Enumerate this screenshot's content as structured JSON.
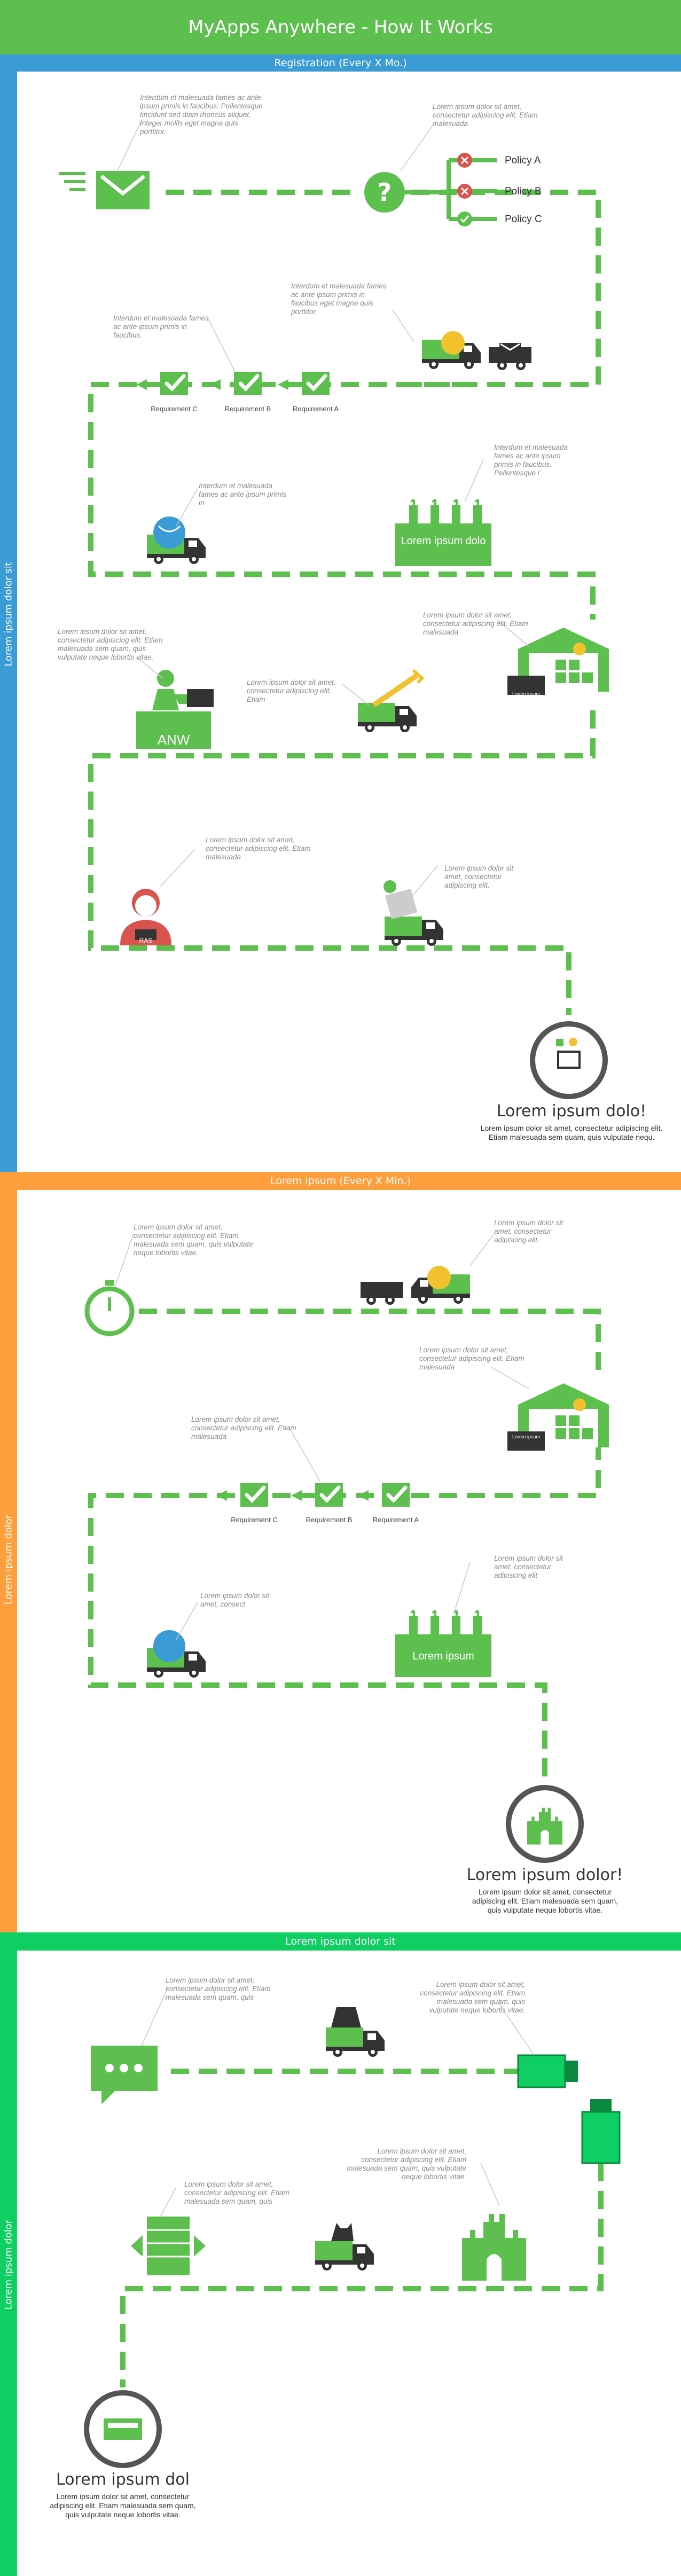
{
  "title": "MyApps Anywhere - How It Works",
  "colors": {
    "green": "#5cbf4e",
    "blue": "#3a9bd5",
    "orange": "#ff9e3d",
    "bright_green": "#0fcf63",
    "dark": "#333333",
    "red": "#d9534f"
  },
  "sections": [
    {
      "header": "Registration (Every X Mo.)",
      "side_label": "Lorem ipsum dolor sit"
    },
    {
      "header": "Lorem ipsum (Every X Min.)",
      "side_label": "Lorem ipsum dolor"
    },
    {
      "header": "Lorem ipsum dolor sit",
      "side_label": "Lorem ipsum dolor"
    }
  ],
  "s1": {
    "notes": [
      "Interdum et malesuada fames ac ante ipsum primis in faucibus. Pellentesque tincidunt sed diam rhoncus aliquet. Integer mollis eget magna quis porttitor.",
      "Lorem ipsum dolor sit amet, consectetur adipiscing elit. Etiam malesuada",
      "Interdum et malesuada fames ac ante ipsum primis in faucibus eget magna quis porttitor.",
      "Interdum et malesuada fames ac ante ipsum primis in faucibus.",
      "Interdum et malesuada fames ac ante ipsum primis in",
      "Interdum et malesuada fames ac ante ipsum primis in faucibus. Pellentesque l",
      "Lorem ipsum dolor sit amet, consectetur adipiscing elit. Etiam malesuada",
      "Lorem ipsum dolor sit amet, consectetur adipiscing elit. Etiam malesuada sem quam, quis vulputate neque lobortis vitae.",
      "Lorem ipsum dolor sit amet, consectetur adipiscing elit. Etiam",
      "Lorem ipsum dolor sit amet, consectetur adipiscing elit. Etiam malesuada",
      "Lorem ipsum dolor sit amet, consectetur adipiscing elit."
    ],
    "policies": [
      "Policy A",
      "Policy B",
      "Policy C"
    ],
    "requirements": [
      "Requirement C",
      "Requirement B",
      "Requirement A"
    ],
    "factory_label": "Lorem ipsum dolo",
    "desk_label": "ANW",
    "badge_label": "RAS",
    "sign_label": "Lorem ipsum",
    "final_title": "Lorem ipsum dolo!",
    "final_body": "Lorem ipsum dolor sit amet, consectetur adipiscing elit. Etiam malesuada sem quam, quis vulputate nequ."
  },
  "s2": {
    "notes": [
      "Lorem ipsum dolor sit amet, consectetur adipiscing elit. Etiam malesuada sem quam, quis vulputate neque lobortis vitae.",
      "Lorem ipsum dolor sit amet, consectetur adipiscing elit.",
      "Lorem ipsum dolor sit amet, consectetur adipiscing elit. Etiam malesuada",
      "Lorem ipsum dolor sit amet, consectetur adipiscing elit. Etiam malesuada",
      "Lorem ipsum dolor sit amet, consect",
      "Lorem ipsum dolor sit amet, consectetur adipiscing elit"
    ],
    "requirements": [
      "Requirement C",
      "Requirement B",
      "Requirement A"
    ],
    "factory_label": "Lorem ipsum",
    "sign_label": "Lorem ipsum",
    "final_title": "Lorem ipsum dolor!",
    "final_body": "Lorem ipsum dolor sit amet, consectetur adipiscing elit. Etiam malesuada sem quam, quis vulputate neque lobortis vitae."
  },
  "s3": {
    "notes": [
      "Lorem ipsum dolor sit amet, consectetur adipiscing elit. Etiam malesuada sem quam, quis",
      "Lorem ipsum dolor sit amet, consectetur adipiscing elit. Etiam malesuada sem quam, quis vulputate neque lobortis vitae.",
      "Lorem ipsum dolor sit amet, consectetur adipiscing elit. Etiam malesuada sem quam, quis vulputate neque lobortis vitae.",
      "Lorem ipsum dolor sit amet, consectetur adipiscing elit. Etiam malesuada sem quam, quis"
    ],
    "final_title": "Lorem ipsum dol",
    "final_body": "Lorem ipsum dolor sit amet, consectetur adipiscing elit. Etiam malesuada sem quam, quis vulputate neque lobortis vitae."
  }
}
